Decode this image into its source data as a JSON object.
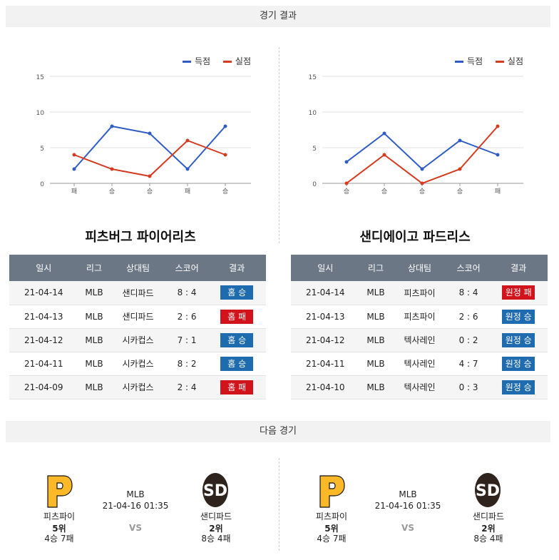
{
  "sections": {
    "results_title": "경기 결과",
    "next_title": "다음 경기"
  },
  "legend": {
    "scored": "득점",
    "allowed": "실점",
    "scored_color": "#2f5cc4",
    "allowed_color": "#d63a1f"
  },
  "chart_data": [
    {
      "type": "line",
      "categories": [
        "패",
        "승",
        "승",
        "패",
        "승"
      ],
      "ylim": [
        0,
        15
      ],
      "yticks": [
        0,
        5,
        10,
        15
      ],
      "series": [
        {
          "name": "득점",
          "values": [
            2,
            8,
            7,
            2,
            8
          ]
        },
        {
          "name": "실점",
          "values": [
            4,
            2,
            1,
            6,
            4
          ]
        }
      ]
    },
    {
      "type": "line",
      "categories": [
        "승",
        "승",
        "승",
        "승",
        "패"
      ],
      "ylim": [
        0,
        15
      ],
      "yticks": [
        0,
        5,
        10,
        15
      ],
      "series": [
        {
          "name": "득점",
          "values": [
            3,
            7,
            2,
            6,
            4
          ]
        },
        {
          "name": "실점",
          "values": [
            0,
            4,
            0,
            2,
            8
          ]
        }
      ]
    }
  ],
  "teams": [
    {
      "title": "피츠버그 파이어리츠",
      "headers": [
        "일시",
        "리그",
        "상대팀",
        "스코어",
        "결과"
      ],
      "rows": [
        {
          "date": "21-04-14",
          "league": "MLB",
          "opponent": "샌디파드",
          "score": "8 : 4",
          "result": "홈 승",
          "win": true
        },
        {
          "date": "21-04-13",
          "league": "MLB",
          "opponent": "샌디파드",
          "score": "2 : 6",
          "result": "홈 패",
          "win": false
        },
        {
          "date": "21-04-12",
          "league": "MLB",
          "opponent": "시카컵스",
          "score": "7 : 1",
          "result": "홈 승",
          "win": true
        },
        {
          "date": "21-04-11",
          "league": "MLB",
          "opponent": "시카컵스",
          "score": "8 : 2",
          "result": "홈 승",
          "win": true
        },
        {
          "date": "21-04-09",
          "league": "MLB",
          "opponent": "시카컵스",
          "score": "2 : 4",
          "result": "홈 패",
          "win": false
        }
      ]
    },
    {
      "title": "샌디에이고 파드리스",
      "headers": [
        "일시",
        "리그",
        "상대팀",
        "스코어",
        "결과"
      ],
      "rows": [
        {
          "date": "21-04-14",
          "league": "MLB",
          "opponent": "피츠파이",
          "score": "8 : 4",
          "result": "원정 패",
          "win": false
        },
        {
          "date": "21-04-13",
          "league": "MLB",
          "opponent": "피츠파이",
          "score": "2 : 6",
          "result": "원정 승",
          "win": true
        },
        {
          "date": "21-04-12",
          "league": "MLB",
          "opponent": "텍사레인",
          "score": "0 : 2",
          "result": "원정 승",
          "win": true
        },
        {
          "date": "21-04-11",
          "league": "MLB",
          "opponent": "텍사레인",
          "score": "4 : 7",
          "result": "원정 승",
          "win": true
        },
        {
          "date": "21-04-10",
          "league": "MLB",
          "opponent": "텍사레인",
          "score": "0 : 3",
          "result": "원정 승",
          "win": true
        }
      ]
    }
  ],
  "next_games": [
    {
      "league": "MLB",
      "datetime": "21-04-16 01:35",
      "vs": "VS",
      "home": {
        "name": "피츠파이",
        "rank": "5위",
        "record": "4승 7패"
      },
      "away": {
        "name": "샌디파드",
        "rank": "2위",
        "record": "8승 4패"
      }
    },
    {
      "league": "MLB",
      "datetime": "21-04-16 01:35",
      "vs": "VS",
      "home": {
        "name": "피츠파이",
        "rank": "5위",
        "record": "4승 7패"
      },
      "away": {
        "name": "샌디파드",
        "rank": "2위",
        "record": "8승 4패"
      }
    }
  ],
  "logos": {
    "pirates": "P",
    "padres": "SD",
    "pirates_color": "#fdb827",
    "padres_color": "#2f241d"
  }
}
